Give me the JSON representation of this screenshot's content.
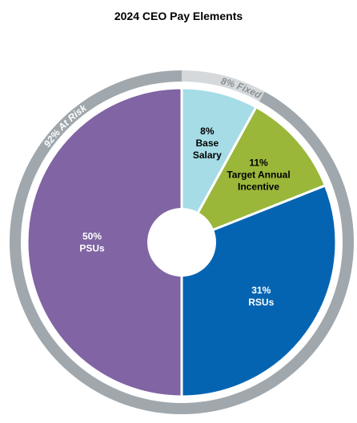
{
  "chart_data": {
    "type": "pie",
    "title": "2024 CEO Pay Elements",
    "slices": [
      {
        "label_value": "8%",
        "label_lines": [
          "Base",
          "Salary"
        ],
        "value": 8,
        "color": "#a6dce6",
        "text_color": "#000000"
      },
      {
        "label_value": "11%",
        "label_lines": [
          "Target Annual",
          "Incentive"
        ],
        "value": 11,
        "color": "#9ab73a",
        "text_color": "#000000"
      },
      {
        "label_value": "31%",
        "label_lines": [
          "RSUs"
        ],
        "value": 31,
        "color": "#0564b2",
        "text_color": "#ffffff"
      },
      {
        "label_value": "50%",
        "label_lines": [
          "PSUs"
        ],
        "value": 50,
        "color": "#8064a3",
        "text_color": "#ffffff"
      }
    ],
    "outer_ring": [
      {
        "label": "8% Fixed",
        "value": 8,
        "color": "#d5d9db",
        "text_color": "#8a8f93"
      },
      {
        "label": "92% At Risk",
        "value": 92,
        "color": "#a0a8ad",
        "text_color": "#ffffff"
      }
    ],
    "center_hole": true
  }
}
